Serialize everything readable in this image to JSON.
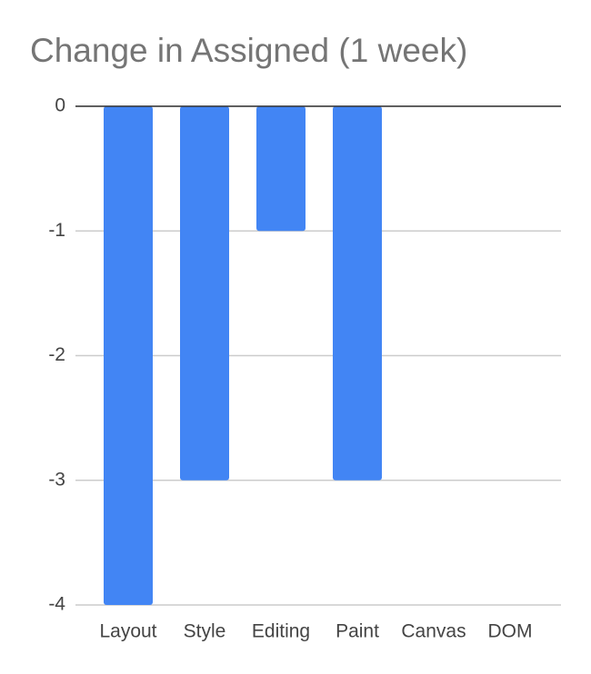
{
  "chart_data": {
    "type": "bar",
    "title": "Change in Assigned (1 week)",
    "categories": [
      "Layout",
      "Style",
      "Editing",
      "Paint",
      "Canvas",
      "DOM"
    ],
    "values": [
      -4,
      -3,
      -1,
      -3,
      0,
      0
    ],
    "color": "#4285f4",
    "ylim": [
      -4,
      0
    ],
    "yticks": [
      0,
      -1,
      -2,
      -3,
      -4
    ],
    "grid": true
  }
}
